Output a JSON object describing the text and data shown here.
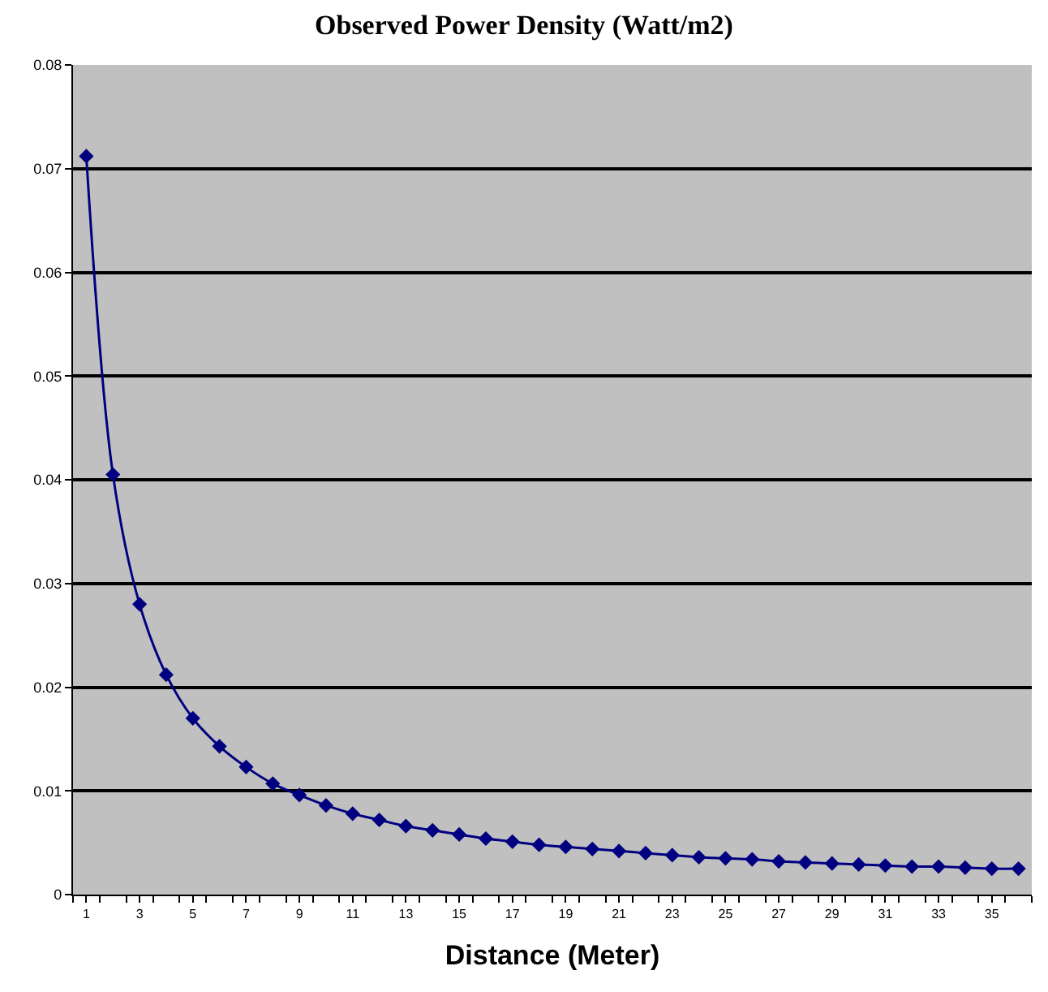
{
  "chart_data": {
    "type": "line",
    "title": "Observed Power Density (Watt/m2)",
    "xlabel": "Distance (Meter)",
    "x": [
      1,
      2,
      3,
      4,
      5,
      6,
      7,
      8,
      9,
      10,
      11,
      12,
      13,
      14,
      15,
      16,
      17,
      18,
      19,
      20,
      21,
      22,
      23,
      24,
      25,
      26,
      27,
      28,
      29,
      30,
      31,
      32,
      33,
      34,
      35,
      36
    ],
    "xlim": [
      0.5,
      36.5
    ],
    "xticks": [
      1,
      3,
      5,
      7,
      9,
      11,
      13,
      15,
      17,
      19,
      21,
      23,
      25,
      27,
      29,
      31,
      33,
      35
    ],
    "series": [
      {
        "color": "#000080",
        "values": [
          0.0712,
          0.0405,
          0.028,
          0.0212,
          0.017,
          0.0143,
          0.0123,
          0.0107,
          0.0096,
          0.0086,
          0.0078,
          0.0072,
          0.0066,
          0.0062,
          0.0058,
          0.0054,
          0.0051,
          0.0048,
          0.0046,
          0.0044,
          0.0042,
          0.004,
          0.0038,
          0.0036,
          0.0035,
          0.0034,
          0.0032,
          0.0031,
          0.003,
          0.0029,
          0.0028,
          0.0027,
          0.0027,
          0.0026,
          0.0025,
          0.0025
        ]
      }
    ],
    "ylim": [
      0,
      0.08
    ],
    "yticks": [
      0,
      0.01,
      0.02,
      0.03,
      0.04,
      0.05,
      0.06,
      0.07,
      0.08
    ],
    "grid": "y",
    "marker": "diamond",
    "line_style": "solid",
    "legend": false
  }
}
